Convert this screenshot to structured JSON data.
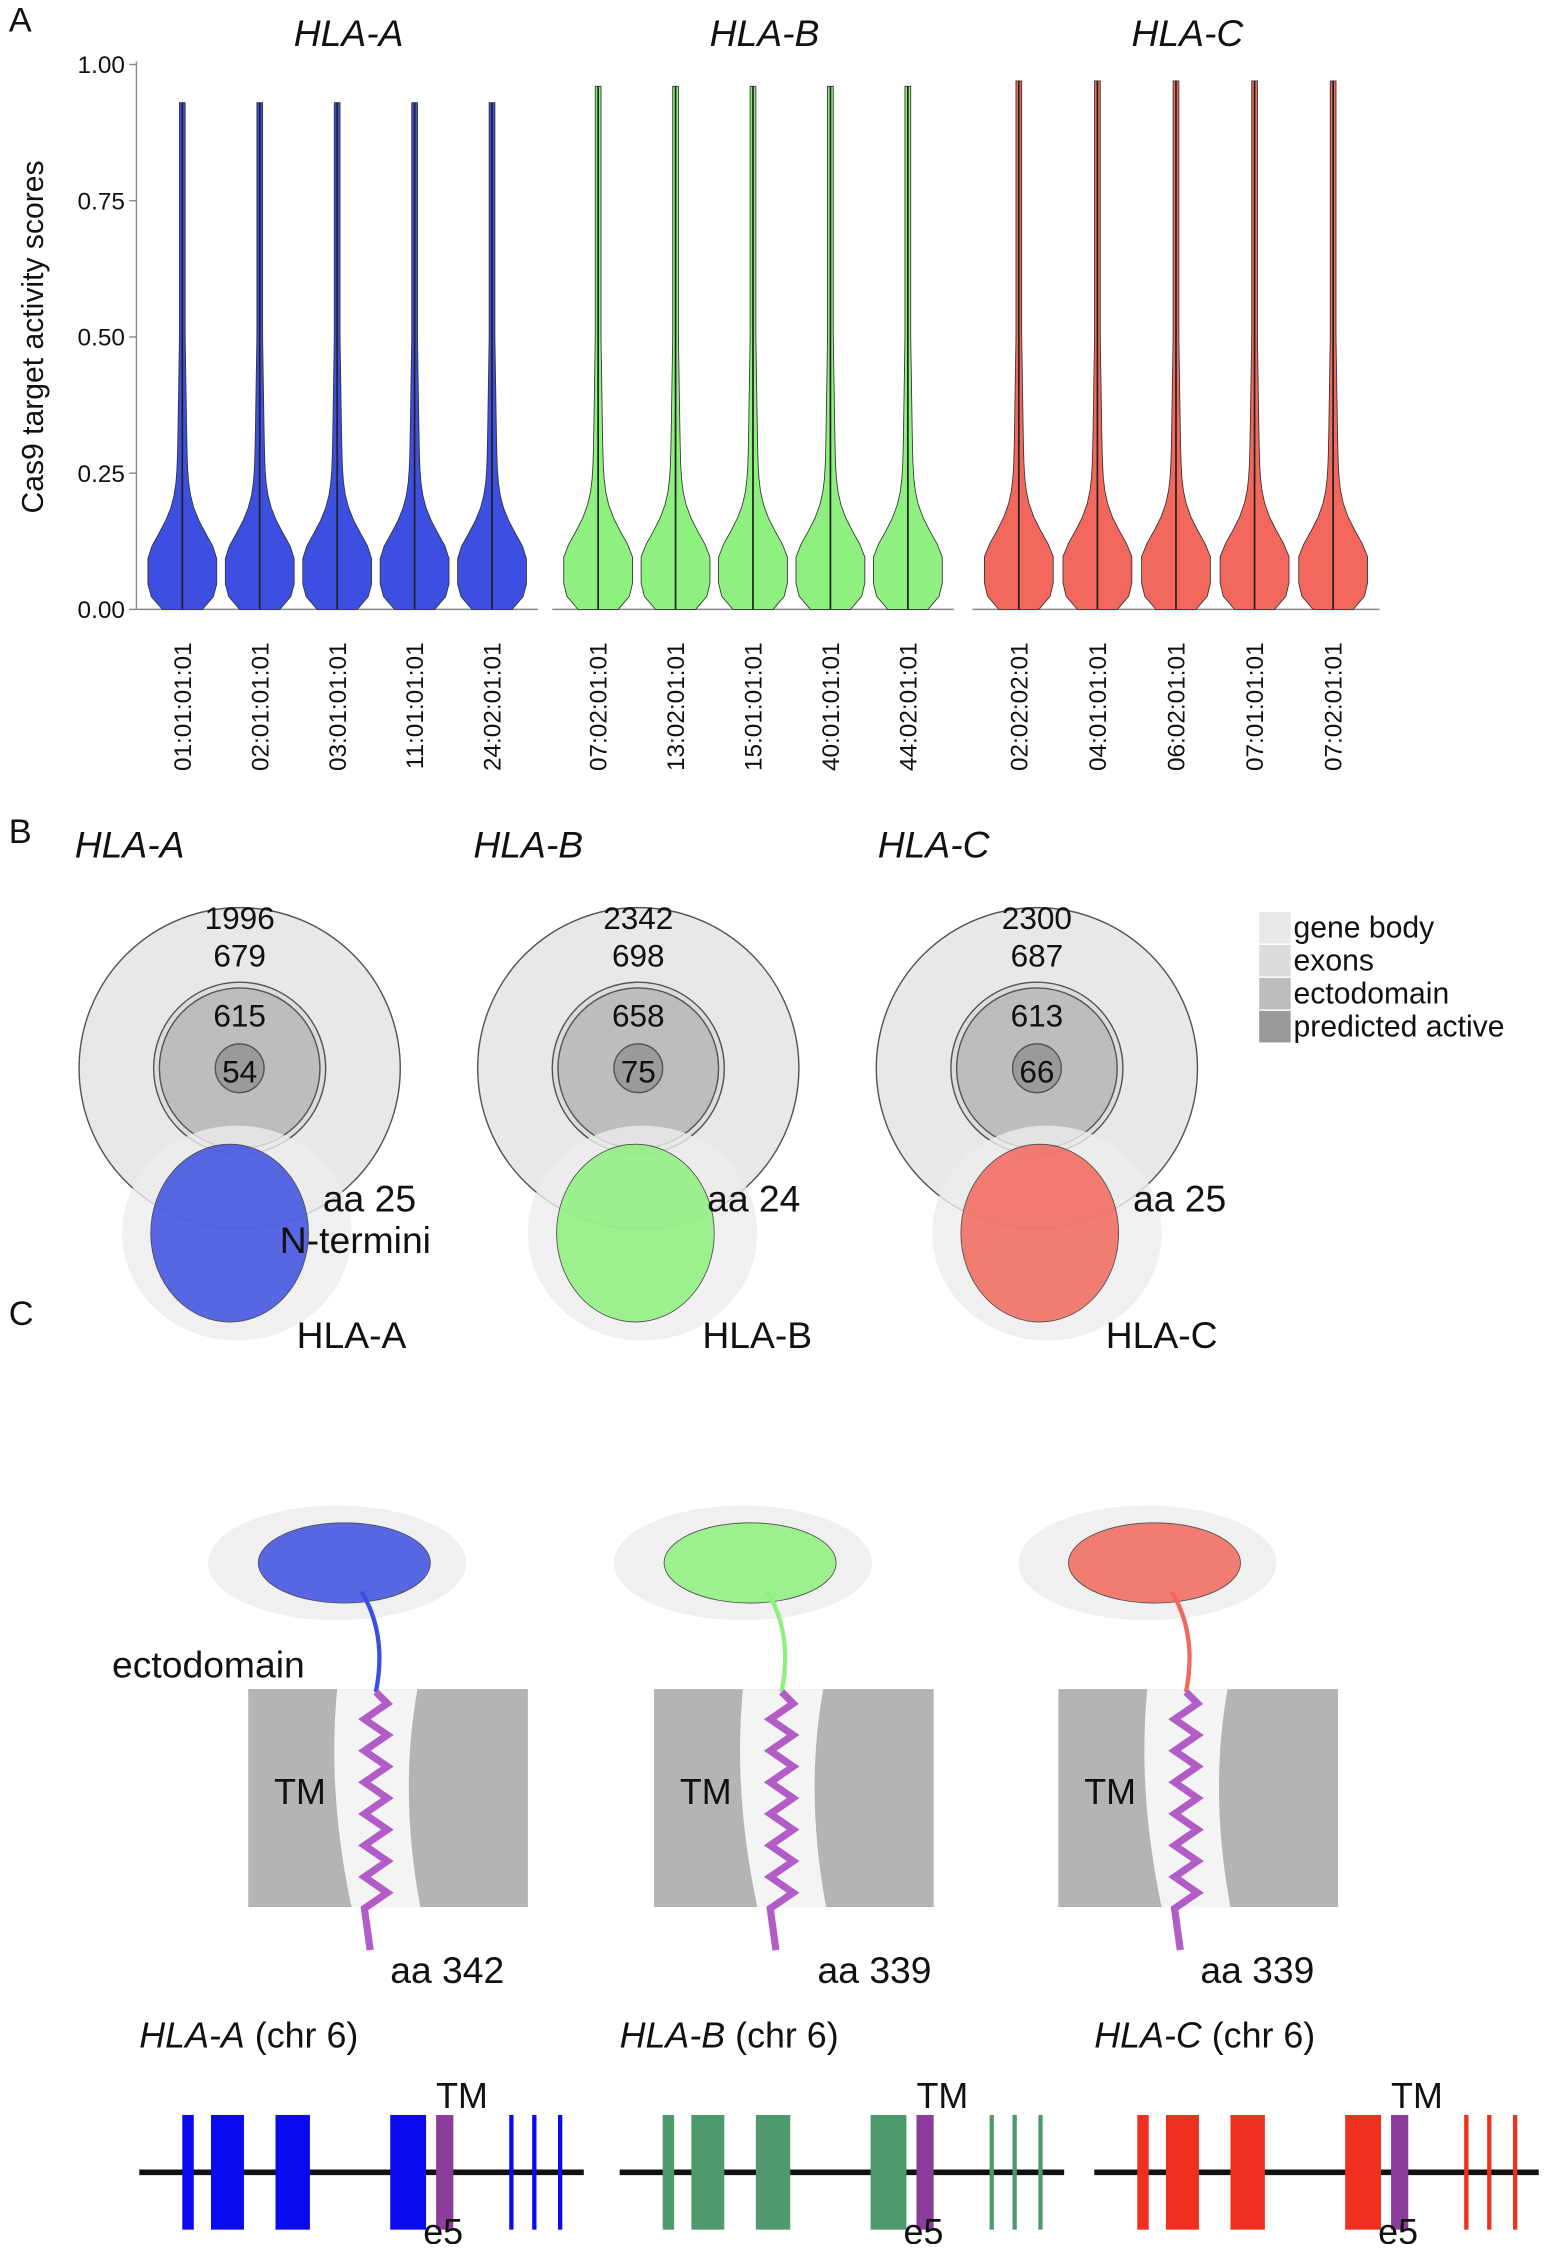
{
  "panel_labels": [
    "A",
    "B",
    "C"
  ],
  "chart_data": {
    "type": "violin",
    "ylabel": "Cas9 target activity scores",
    "ylim": [
      0,
      1
    ],
    "yticks": [
      {
        "value": 0,
        "label": "0.00"
      },
      {
        "value": 0.25,
        "label": "0.25"
      },
      {
        "value": 0.5,
        "label": "0.50"
      },
      {
        "value": 0.75,
        "label": "0.75"
      },
      {
        "value": 1,
        "label": "1.00"
      }
    ],
    "series": [
      {
        "name": "HLA-A",
        "color": "#3d4fe0",
        "categories": [
          "01:01:01:01",
          "02:01:01:01",
          "03:01:01:01",
          "11:01:01:01",
          "24:02:01:01"
        ],
        "values": [
          0.93,
          0.93,
          0.93,
          0.93,
          0.93
        ]
      },
      {
        "name": "HLA-B",
        "color": "#8ef07e",
        "categories": [
          "07:02:01:01",
          "13:02:01:01",
          "15:01:01:01",
          "40:01:01:01",
          "44:02:01:01"
        ],
        "values": [
          0.96,
          0.96,
          0.96,
          0.96,
          0.96
        ]
      },
      {
        "name": "HLA-C",
        "color": "#f2685c",
        "categories": [
          "02:02:02:01",
          "04:01:01:01",
          "06:02:01:01",
          "07:01:01:01",
          "07:02:01:01"
        ],
        "values": [
          0.97,
          0.97,
          0.97,
          0.97,
          0.97
        ]
      }
    ]
  },
  "venn": {
    "legend": [
      {
        "label": "gene body",
        "color": "#e8e8e8"
      },
      {
        "label": "exons",
        "color": "#dcdcdc"
      },
      {
        "label": "ectodomain",
        "color": "#bdbdbd"
      },
      {
        "label": "predicted active",
        "color": "#9a9a9a"
      }
    ],
    "groups": [
      {
        "name": "HLA-A",
        "counts": [
          1996,
          679,
          615,
          54
        ]
      },
      {
        "name": "HLA-B",
        "counts": [
          2342,
          698,
          658,
          75
        ]
      },
      {
        "name": "HLA-C",
        "counts": [
          2300,
          687,
          613,
          66
        ]
      }
    ]
  },
  "structures": {
    "ectodomain_label": "ectodomain",
    "n_termini_label": "N-termini",
    "tm_label": "TM",
    "items": [
      {
        "name": "HLA-A",
        "n_term": "aa 25",
        "c_term": "aa 342"
      },
      {
        "name": "HLA-B",
        "n_term": "aa 24",
        "c_term": "aa 339"
      },
      {
        "name": "HLA-C",
        "n_term": "aa 25",
        "c_term": "aa 339"
      }
    ]
  },
  "genes": {
    "tm_label": "TM",
    "exon_label": "e5",
    "items": [
      {
        "name": "HLA-A",
        "chr": "(chr 6)",
        "color": "#0a0af0"
      },
      {
        "name": "HLA-B",
        "chr": "(chr 6)",
        "color": "#4f9a6c"
      },
      {
        "name": "HLA-C",
        "chr": "(chr 6)",
        "color": "#f0301e"
      }
    ]
  }
}
